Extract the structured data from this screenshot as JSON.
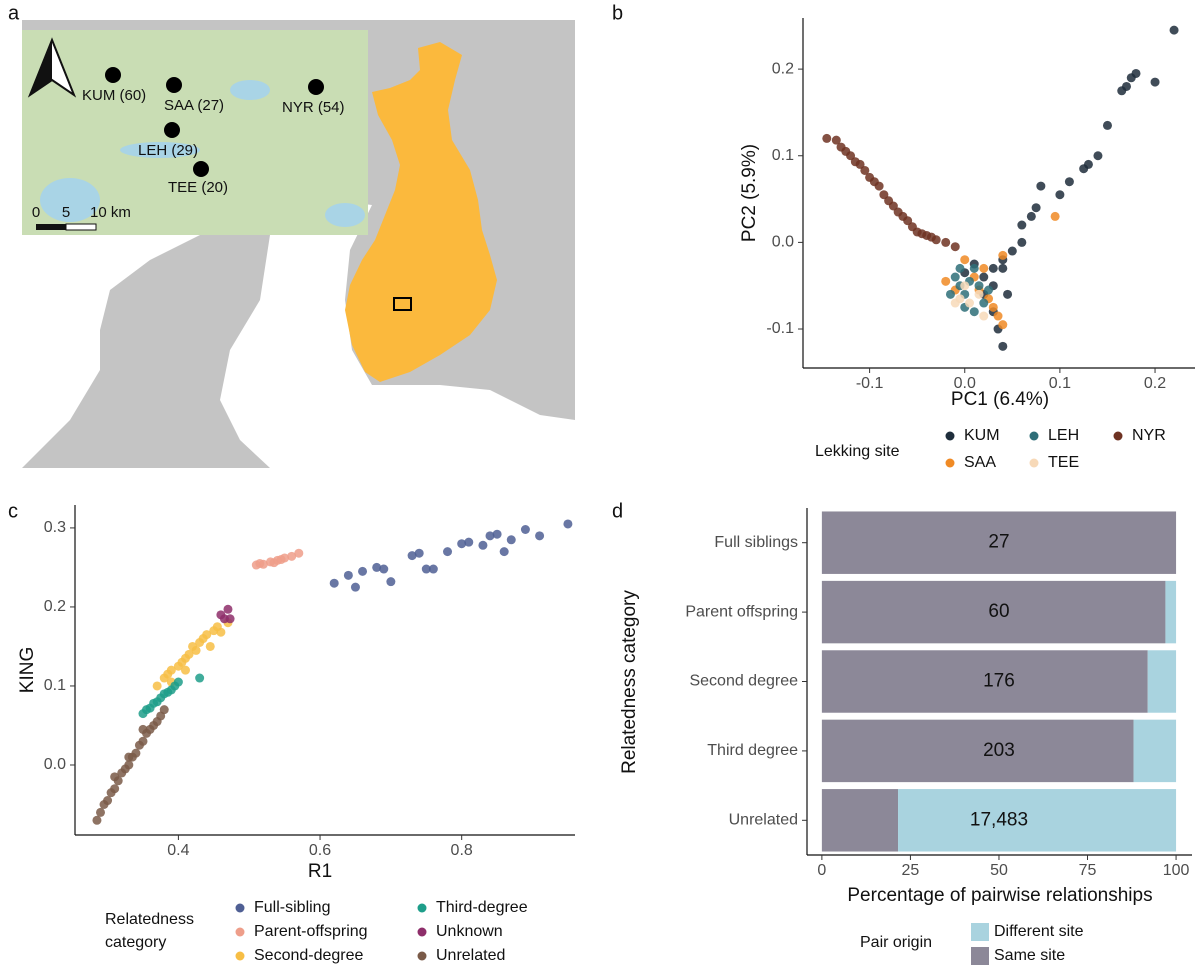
{
  "map": {
    "panel": "a",
    "sites": [
      "KUM (60)",
      "SAA (27)",
      "LEH (29)",
      "TEE (20)",
      "NYR (54)"
    ],
    "scale": [
      "0",
      "5",
      "10 km"
    ]
  },
  "chart_data": [
    {
      "type": "scatter",
      "panel": "b",
      "x_label": "PC1 (6.4%)",
      "y_label": "PC2 (5.9%)",
      "legend_title": [
        "Lekking site"
      ],
      "xlim": [
        -0.17,
        0.242
      ],
      "ylim": [
        -0.145,
        0.259
      ],
      "xticks": [
        -0.1,
        {
          "value": 0,
          "label": "0.0"
        },
        0.1,
        0.2
      ],
      "yticks": [
        -0.1,
        {
          "value": 0,
          "label": "0.0"
        },
        0.1,
        0.2
      ],
      "series": [
        {
          "name": "KUM",
          "color": "#1e2d3b",
          "x": [
            0.22,
            0.2,
            0.18,
            0.175,
            0.17,
            0.165,
            0.15,
            0.14,
            0.13,
            0.125,
            0.11,
            0.1,
            0.08,
            0.075,
            0.07,
            0.06,
            0.06,
            0.05,
            0.04,
            0.03,
            0.02,
            0.02,
            0.03,
            0.035,
            0.04,
            0.03,
            0.04,
            0.01,
            0.0,
            0.045
          ],
          "y": [
            0.245,
            0.185,
            0.195,
            0.19,
            0.18,
            0.175,
            0.135,
            0.1,
            0.09,
            0.085,
            0.07,
            0.055,
            0.065,
            0.04,
            0.03,
            0.02,
            0.0,
            -0.01,
            -0.02,
            -0.03,
            -0.04,
            -0.06,
            -0.08,
            -0.1,
            -0.12,
            -0.05,
            -0.03,
            -0.025,
            -0.035,
            -0.06
          ]
        },
        {
          "name": "SAA",
          "color": "#f08a24",
          "x": [
            0.095,
            0.01,
            0.015,
            0.03,
            0.035,
            0.04,
            -0.02,
            0.025,
            0.0,
            0.04,
            -0.01,
            0.02
          ],
          "y": [
            0.03,
            -0.04,
            -0.055,
            -0.075,
            -0.085,
            -0.095,
            -0.045,
            -0.065,
            -0.02,
            -0.015,
            -0.055,
            -0.03
          ]
        },
        {
          "name": "LEH",
          "color": "#2e6e78",
          "x": [
            -0.01,
            -0.005,
            0.0,
            0.005,
            0.01,
            0.015,
            -0.015,
            0.0,
            0.01,
            0.02,
            0.025,
            -0.005
          ],
          "y": [
            -0.04,
            -0.05,
            -0.06,
            -0.045,
            -0.03,
            -0.05,
            -0.06,
            -0.075,
            -0.08,
            -0.07,
            -0.055,
            -0.03
          ]
        },
        {
          "name": "TEE",
          "color": "#f7d9b8",
          "x": [
            -0.005,
            0.005,
            -0.01,
            0.015,
            0.0,
            0.02
          ],
          "y": [
            -0.065,
            -0.07,
            -0.07,
            -0.06,
            -0.05,
            -0.085
          ]
        },
        {
          "name": "NYR",
          "color": "#6e3222",
          "x": [
            -0.145,
            -0.135,
            -0.13,
            -0.125,
            -0.12,
            -0.115,
            -0.11,
            -0.105,
            -0.1,
            -0.095,
            -0.09,
            -0.085,
            -0.08,
            -0.075,
            -0.07,
            -0.065,
            -0.06,
            -0.055,
            -0.05,
            -0.045,
            -0.04,
            -0.035,
            -0.03,
            -0.02,
            -0.01
          ],
          "y": [
            0.12,
            0.118,
            0.11,
            0.105,
            0.1,
            0.093,
            0.09,
            0.083,
            0.075,
            0.07,
            0.065,
            0.055,
            0.048,
            0.042,
            0.035,
            0.03,
            0.025,
            0.018,
            0.012,
            0.01,
            0.008,
            0.006,
            0.003,
            0.0,
            -0.005
          ]
        }
      ]
    },
    {
      "type": "scatter",
      "panel": "c",
      "x_label": "R1",
      "y_label": "KING",
      "legend_title": [
        "Relatedness",
        "category"
      ],
      "xlim": [
        0.254,
        0.96
      ],
      "ylim": [
        -0.0886,
        0.329
      ],
      "xticks": [
        0.4,
        0.6,
        0.8
      ],
      "yticks": [
        {
          "value": 0,
          "label": "0.0"
        },
        0.1,
        0.2,
        0.3
      ],
      "series": [
        {
          "name": "Full-sibling",
          "color": "#4f5f94",
          "x": [
            0.62,
            0.64,
            0.65,
            0.66,
            0.68,
            0.69,
            0.7,
            0.73,
            0.74,
            0.75,
            0.76,
            0.78,
            0.8,
            0.81,
            0.83,
            0.84,
            0.85,
            0.87,
            0.89,
            0.91,
            0.95,
            0.86
          ],
          "y": [
            0.23,
            0.24,
            0.225,
            0.245,
            0.25,
            0.248,
            0.232,
            0.265,
            0.268,
            0.248,
            0.248,
            0.27,
            0.28,
            0.282,
            0.278,
            0.29,
            0.292,
            0.285,
            0.298,
            0.29,
            0.305,
            0.27
          ]
        },
        {
          "name": "Parent-offspring",
          "color": "#ee9e8a",
          "x": [
            0.51,
            0.515,
            0.52,
            0.53,
            0.535,
            0.54,
            0.545,
            0.55,
            0.56,
            0.57
          ],
          "y": [
            0.253,
            0.255,
            0.254,
            0.257,
            0.256,
            0.259,
            0.26,
            0.262,
            0.264,
            0.268
          ]
        },
        {
          "name": "Second-degree",
          "color": "#f7be45",
          "x": [
            0.37,
            0.38,
            0.385,
            0.39,
            0.4,
            0.405,
            0.41,
            0.415,
            0.42,
            0.425,
            0.43,
            0.435,
            0.44,
            0.45,
            0.455,
            0.46,
            0.47,
            0.39,
            0.41,
            0.445
          ],
          "y": [
            0.1,
            0.11,
            0.115,
            0.12,
            0.125,
            0.13,
            0.135,
            0.14,
            0.15,
            0.145,
            0.155,
            0.16,
            0.165,
            0.17,
            0.175,
            0.168,
            0.18,
            0.105,
            0.12,
            0.15
          ]
        },
        {
          "name": "Third-degree",
          "color": "#1e9e8a",
          "x": [
            0.35,
            0.355,
            0.36,
            0.365,
            0.37,
            0.375,
            0.38,
            0.385,
            0.39,
            0.395,
            0.4,
            0.43
          ],
          "y": [
            0.065,
            0.07,
            0.072,
            0.078,
            0.08,
            0.085,
            0.09,
            0.092,
            0.095,
            0.1,
            0.105,
            0.11
          ]
        },
        {
          "name": "Unknown",
          "color": "#8e2e6a",
          "x": [
            0.46,
            0.47,
            0.465,
            0.473
          ],
          "y": [
            0.19,
            0.197,
            0.185,
            0.185
          ]
        },
        {
          "name": "Unrelated",
          "color": "#7a5a48",
          "x": [
            0.285,
            0.29,
            0.295,
            0.3,
            0.305,
            0.31,
            0.315,
            0.32,
            0.325,
            0.33,
            0.335,
            0.34,
            0.345,
            0.35,
            0.355,
            0.36,
            0.365,
            0.37,
            0.375,
            0.38,
            0.31,
            0.33,
            0.35
          ],
          "y": [
            -0.07,
            -0.06,
            -0.05,
            -0.045,
            -0.035,
            -0.03,
            -0.02,
            -0.01,
            -0.005,
            0.0,
            0.01,
            0.015,
            0.025,
            0.03,
            0.04,
            0.045,
            0.05,
            0.055,
            0.062,
            0.07,
            -0.015,
            0.01,
            0.045
          ]
        }
      ]
    },
    {
      "type": "hbar",
      "panel": "d",
      "x_label": "Percentage of pairwise relationships",
      "y_label": "Relatedness category",
      "legend_title": [
        "Pair origin"
      ],
      "xlim": [
        -4.2,
        104.5
      ],
      "xticks": [
        0,
        25,
        50,
        75,
        100
      ],
      "categories": [
        "Full siblings",
        "Parent offspring",
        "Second degree",
        "Third degree",
        "Unrelated"
      ],
      "counts": [
        27,
        60,
        176,
        203,
        {
          "value": 17483,
          "label": "17,483"
        }
      ],
      "series": [
        {
          "name": "Different site",
          "color": "#a9d3df",
          "values": [
            0,
            3,
            8,
            12,
            78.5
          ]
        },
        {
          "name": "Same site",
          "color": "#8c8898",
          "values": [
            100,
            97,
            92,
            88,
            21.5
          ]
        }
      ]
    }
  ]
}
